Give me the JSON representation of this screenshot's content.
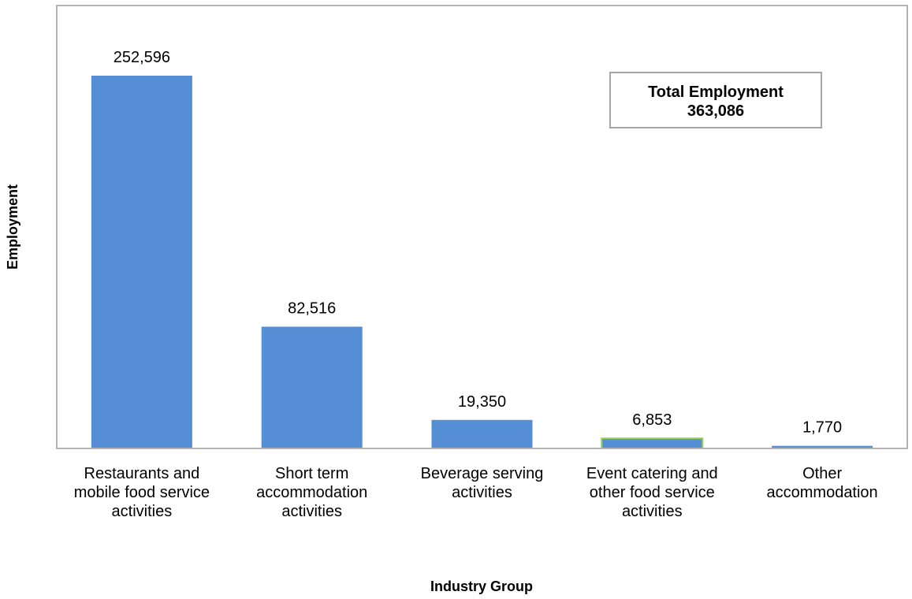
{
  "chart_data": {
    "type": "bar",
    "title": "",
    "xlabel": "Industry Group",
    "ylabel": "Employment",
    "ylim": [
      0,
      280000
    ],
    "grid": false,
    "legend": "none",
    "categories": [
      [
        "Restaurants and",
        "mobile food service",
        "activities"
      ],
      [
        "Short term",
        "accommodation",
        "activities"
      ],
      [
        "Beverage serving",
        "activities"
      ],
      [
        "Event catering and",
        "other food service",
        "activities"
      ],
      [
        "Other",
        "accommodation"
      ]
    ],
    "values": [
      252596,
      82516,
      19350,
      6853,
      1770
    ],
    "data_labels": [
      "252,596",
      "82,516",
      "19,350",
      "6,853",
      "1,770"
    ],
    "bar_color": "#558ed5",
    "highlight_outline_color": "#92d050",
    "annotation": {
      "line1": "Total Employment",
      "line2": "363,086"
    }
  }
}
